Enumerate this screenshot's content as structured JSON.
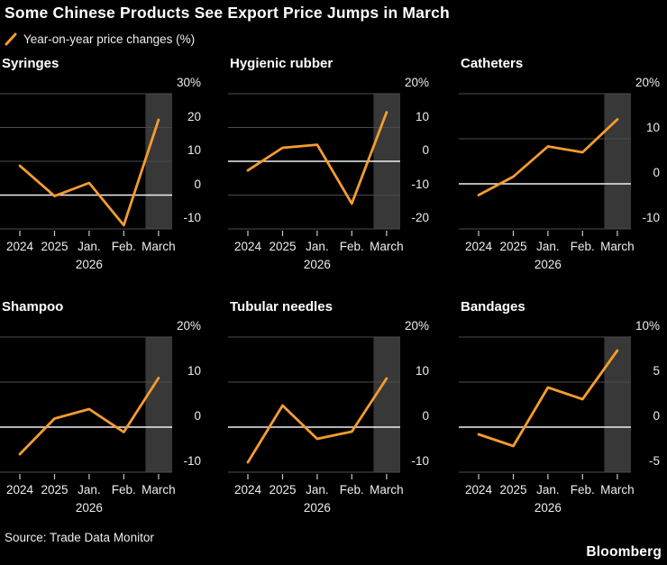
{
  "header": {
    "title": "Some Chinese Products See Export Price Jumps in March",
    "legend": {
      "label": "Year-on-year price changes (%)"
    }
  },
  "x_axis": {
    "categories": [
      "2024",
      "2025",
      "Jan.",
      "Feb.",
      "March"
    ],
    "sub_label": "2026"
  },
  "chart_data": [
    {
      "type": "line",
      "title": "Syringes",
      "x": [
        "2024",
        "2025",
        "Jan. 2026",
        "Feb. 2026",
        "March 2026"
      ],
      "values": [
        8.7,
        -0.3,
        3.6,
        -8.9,
        22.3
      ],
      "yticks": [
        {
          "value": 30,
          "label": "30%"
        },
        {
          "value": 20,
          "label": "20"
        },
        {
          "value": 10,
          "label": "10"
        },
        {
          "value": 0,
          "label": "0"
        },
        {
          "value": -10,
          "label": "-10"
        }
      ],
      "ylim": [
        -10,
        30
      ],
      "highlight": "March"
    },
    {
      "type": "line",
      "title": "Hygienic rubber",
      "x": [
        "2024",
        "2025",
        "Jan. 2026",
        "Feb. 2026",
        "March 2026"
      ],
      "values": [
        -2.7,
        4.0,
        4.9,
        -12.5,
        14.5
      ],
      "yticks": [
        {
          "value": 20,
          "label": "20%"
        },
        {
          "value": 10,
          "label": "10"
        },
        {
          "value": 0,
          "label": "0"
        },
        {
          "value": -10,
          "label": "-10"
        },
        {
          "value": -20,
          "label": "-20"
        }
      ],
      "ylim": [
        -20,
        20
      ],
      "highlight": "March"
    },
    {
      "type": "line",
      "title": "Catheters",
      "x": [
        "2024",
        "2025",
        "Jan. 2026",
        "Feb. 2026",
        "March 2026"
      ],
      "values": [
        -2.5,
        1.6,
        8.3,
        7.0,
        14.3
      ],
      "yticks": [
        {
          "value": 20,
          "label": "20%"
        },
        {
          "value": 10,
          "label": "10"
        },
        {
          "value": 0,
          "label": "0"
        },
        {
          "value": -10,
          "label": "-10"
        }
      ],
      "ylim": [
        -10,
        20
      ],
      "highlight": "March"
    },
    {
      "type": "line",
      "title": "Shampoo",
      "x": [
        "2024",
        "2025",
        "Jan. 2026",
        "Feb. 2026",
        "March 2026"
      ],
      "values": [
        -6.0,
        1.9,
        4.0,
        -1.1,
        10.9
      ],
      "yticks": [
        {
          "value": 20,
          "label": "20%"
        },
        {
          "value": 10,
          "label": "10"
        },
        {
          "value": 0,
          "label": "0"
        },
        {
          "value": -10,
          "label": "-10"
        }
      ],
      "ylim": [
        -10,
        20
      ],
      "highlight": "March"
    },
    {
      "type": "line",
      "title": "Tubular needles",
      "x": [
        "2024",
        "2025",
        "Jan. 2026",
        "Feb. 2026",
        "March 2026"
      ],
      "values": [
        -7.8,
        4.8,
        -2.6,
        -1.0,
        10.8
      ],
      "yticks": [
        {
          "value": 20,
          "label": "20%"
        },
        {
          "value": 10,
          "label": "10"
        },
        {
          "value": 0,
          "label": "0"
        },
        {
          "value": -10,
          "label": "-10"
        }
      ],
      "ylim": [
        -10,
        20
      ],
      "highlight": "March"
    },
    {
      "type": "line",
      "title": "Bandages",
      "x": [
        "2024",
        "2025",
        "Jan. 2026",
        "Feb. 2026",
        "March 2026"
      ],
      "values": [
        -0.8,
        -2.1,
        4.4,
        3.1,
        8.5
      ],
      "yticks": [
        {
          "value": 10,
          "label": "10%"
        },
        {
          "value": 5,
          "label": "5"
        },
        {
          "value": 0,
          "label": "0"
        },
        {
          "value": -5,
          "label": "-5"
        }
      ],
      "ylim": [
        -5,
        10
      ],
      "highlight": "March"
    }
  ],
  "footer": {
    "source": "Source: Trade Data Monitor",
    "brand": "Bloomberg"
  },
  "colors": {
    "background": "#000000",
    "accent_orange": "#F59C30",
    "gridline": "#4B4B4B",
    "zero_line": "#F0F0F0",
    "highlight_band": "#383838",
    "tick": "#C8C8C8",
    "title_text": "#FFFFFF",
    "axis_text": "#EDEDED"
  }
}
